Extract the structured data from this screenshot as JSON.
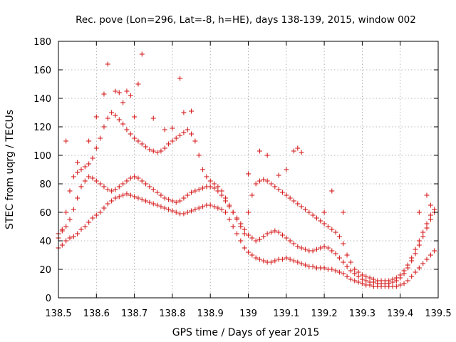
{
  "chart_data": {
    "type": "scatter",
    "title": "Rec. pove (Lon=296, Lat=-8, h=HE), days 138-139, 2015, window 002",
    "xlabel": "GPS time / Days of year 2015",
    "ylabel": "STEC from uqrg / TECUs",
    "xlim": [
      138.5,
      139.5
    ],
    "ylim": [
      0,
      180
    ],
    "x_ticks": [
      "138.5",
      "138.6",
      "138.7",
      "138.8",
      "138.9",
      "139",
      "139.1",
      "139.2",
      "139.3",
      "139.4",
      "139.5"
    ],
    "y_ticks": [
      "0",
      "20",
      "40",
      "60",
      "80",
      "100",
      "120",
      "140",
      "160",
      "180"
    ],
    "grid": true,
    "legend": "none",
    "marker": "plus",
    "color": "#d62020",
    "series": [
      {
        "x": [
          138.5,
          138.51,
          138.52,
          138.53,
          138.54,
          138.55,
          138.56,
          138.57,
          138.58,
          138.59,
          138.6,
          138.61,
          138.62,
          138.63,
          138.64,
          138.65,
          138.66,
          138.67,
          138.68,
          138.69,
          138.7,
          138.71,
          138.72,
          138.73,
          138.74,
          138.75,
          138.76,
          138.77,
          138.78,
          138.79,
          138.8,
          138.81,
          138.82,
          138.83,
          138.84,
          138.85,
          138.86,
          138.87,
          138.88,
          138.89,
          138.9,
          138.91,
          138.92,
          138.93,
          138.94,
          138.95,
          138.96,
          138.97,
          138.98,
          138.99,
          139.0,
          139.01,
          139.02,
          139.03,
          139.04,
          139.05,
          139.06,
          139.07,
          139.08,
          139.09,
          139.1,
          139.11,
          139.12,
          139.13,
          139.14,
          139.15,
          139.16,
          139.17,
          139.18,
          139.19,
          139.2,
          139.21,
          139.22,
          139.23,
          139.24,
          139.25,
          139.26,
          139.27,
          139.28,
          139.29,
          139.3,
          139.31,
          139.32,
          139.33,
          139.34,
          139.35,
          139.36,
          139.37,
          139.38,
          139.39,
          139.4,
          139.41,
          139.42,
          139.43,
          139.44,
          139.45,
          139.46,
          139.47,
          139.48,
          139.49
        ],
        "y": [
          35,
          37,
          40,
          42,
          43,
          45,
          48,
          50,
          53,
          56,
          58,
          60,
          63,
          66,
          68,
          70,
          71,
          72,
          73,
          72,
          71,
          70,
          69,
          68,
          67,
          66,
          65,
          64,
          63,
          62,
          61,
          60,
          59,
          59,
          60,
          61,
          62,
          63,
          64,
          65,
          65,
          64,
          63,
          62,
          60,
          55,
          50,
          45,
          40,
          35,
          32,
          30,
          28,
          27,
          26,
          25,
          25,
          26,
          27,
          27,
          28,
          27,
          26,
          25,
          24,
          23,
          22,
          22,
          21,
          21,
          21,
          20,
          20,
          19,
          18,
          17,
          15,
          13,
          12,
          11,
          10,
          9,
          9,
          8,
          8,
          8,
          8,
          8,
          8,
          8,
          9,
          10,
          12,
          15,
          18,
          21,
          24,
          27,
          30,
          33
        ]
      },
      {
        "x": [
          138.5,
          138.51,
          138.52,
          138.53,
          138.54,
          138.55,
          138.56,
          138.57,
          138.58,
          138.59,
          138.6,
          138.61,
          138.62,
          138.63,
          138.64,
          138.65,
          138.66,
          138.67,
          138.68,
          138.69,
          138.7,
          138.71,
          138.72,
          138.73,
          138.74,
          138.75,
          138.76,
          138.77,
          138.78,
          138.79,
          138.8,
          138.81,
          138.82,
          138.83,
          138.84,
          138.85,
          138.86,
          138.87,
          138.88,
          138.89,
          138.9,
          138.91,
          138.92,
          138.93,
          138.94,
          138.95,
          138.96,
          138.97,
          138.98,
          138.99,
          139.0,
          139.01,
          139.02,
          139.03,
          139.04,
          139.05,
          139.06,
          139.07,
          139.08,
          139.09,
          139.1,
          139.11,
          139.12,
          139.13,
          139.14,
          139.15,
          139.16,
          139.17,
          139.18,
          139.19,
          139.2,
          139.21,
          139.22,
          139.23,
          139.24,
          139.25,
          139.26,
          139.27,
          139.28,
          139.29,
          139.3,
          139.31,
          139.32,
          139.33,
          139.34,
          139.35,
          139.36,
          139.37,
          139.38,
          139.39,
          139.4,
          139.41,
          139.42,
          139.43,
          139.44,
          139.45,
          139.46,
          139.47,
          139.48,
          139.49
        ],
        "y": [
          45,
          47,
          50,
          55,
          62,
          70,
          78,
          82,
          85,
          84,
          82,
          80,
          78,
          76,
          75,
          76,
          78,
          80,
          82,
          84,
          85,
          84,
          82,
          80,
          78,
          76,
          74,
          72,
          70,
          69,
          68,
          67,
          68,
          70,
          72,
          74,
          75,
          76,
          77,
          78,
          78,
          77,
          75,
          72,
          68,
          64,
          60,
          56,
          52,
          48,
          44,
          42,
          40,
          41,
          43,
          45,
          46,
          47,
          46,
          44,
          42,
          40,
          38,
          36,
          35,
          34,
          33,
          33,
          34,
          35,
          36,
          35,
          33,
          31,
          28,
          25,
          22,
          19,
          17,
          15,
          13,
          12,
          11,
          11,
          10,
          10,
          10,
          10,
          11,
          12,
          14,
          17,
          21,
          26,
          31,
          37,
          43,
          49,
          55,
          60
        ]
      },
      {
        "x": [
          138.5,
          138.51,
          138.52,
          138.53,
          138.54,
          138.55,
          138.56,
          138.57,
          138.58,
          138.59,
          138.6,
          138.61,
          138.62,
          138.63,
          138.64,
          138.65,
          138.66,
          138.67,
          138.68,
          138.69,
          138.7,
          138.71,
          138.72,
          138.73,
          138.74,
          138.75,
          138.76,
          138.77,
          138.78,
          138.79,
          138.8,
          138.81,
          138.82,
          138.83,
          138.84,
          138.85,
          138.86,
          138.87,
          138.88,
          138.89,
          138.9,
          138.91,
          138.92,
          138.93,
          138.94,
          138.95,
          138.96,
          138.97,
          138.98,
          138.99,
          139.0,
          139.01,
          139.02,
          139.03,
          139.04,
          139.05,
          139.06,
          139.07,
          139.08,
          139.09,
          139.1,
          139.11,
          139.12,
          139.13,
          139.14,
          139.15,
          139.16,
          139.17,
          139.18,
          139.19,
          139.2,
          139.21,
          139.22,
          139.23,
          139.24,
          139.25,
          139.26,
          139.27,
          139.28,
          139.29,
          139.3,
          139.31,
          139.32,
          139.33,
          139.34,
          139.35,
          139.36,
          139.37,
          139.38,
          139.39,
          139.4,
          139.41,
          139.42,
          139.43,
          139.44,
          139.45,
          139.46,
          139.47,
          139.48,
          139.49
        ],
        "y": [
          42,
          48,
          60,
          75,
          85,
          88,
          90,
          92,
          94,
          98,
          105,
          112,
          120,
          126,
          130,
          128,
          125,
          122,
          118,
          115,
          112,
          110,
          108,
          106,
          104,
          103,
          102,
          103,
          105,
          108,
          110,
          112,
          114,
          116,
          118,
          115,
          110,
          100,
          90,
          85,
          82,
          80,
          78,
          75,
          70,
          65,
          60,
          55,
          50,
          45,
          60,
          72,
          80,
          82,
          83,
          82,
          80,
          78,
          76,
          74,
          72,
          70,
          68,
          66,
          64,
          62,
          60,
          58,
          56,
          54,
          52,
          50,
          48,
          46,
          43,
          38,
          30,
          25,
          20,
          18,
          16,
          15,
          14,
          13,
          12,
          12,
          12,
          12,
          13,
          14,
          16,
          19,
          23,
          28,
          34,
          40,
          46,
          52,
          58,
          62
        ]
      },
      {
        "x": [
          138.52,
          138.55,
          138.58,
          138.6,
          138.62,
          138.63,
          138.65,
          138.66,
          138.67,
          138.68,
          138.69,
          138.7,
          138.71,
          138.72,
          138.75,
          138.78,
          138.8,
          138.82,
          138.83,
          138.85,
          139.0,
          139.03,
          139.05,
          139.08,
          139.1,
          139.12,
          139.13,
          139.14,
          139.2,
          139.22,
          139.25,
          139.45,
          139.47,
          139.48
        ],
        "y": [
          110,
          95,
          110,
          127,
          143,
          164,
          145,
          144,
          137,
          145,
          142,
          127,
          150,
          171,
          126,
          118,
          119,
          154,
          130,
          131,
          87,
          103,
          100,
          86,
          90,
          103,
          105,
          102,
          60,
          75,
          60,
          60,
          72,
          65
        ]
      }
    ]
  }
}
